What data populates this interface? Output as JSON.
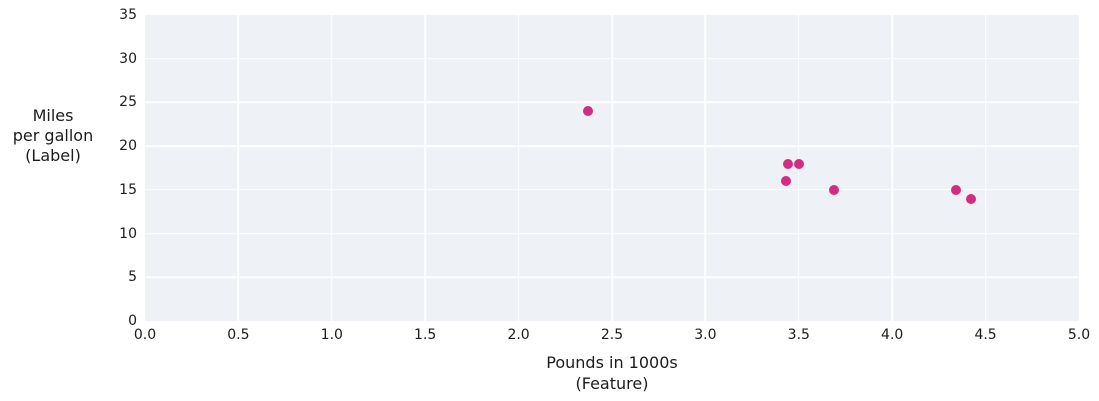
{
  "figure": {
    "y_axis_title": "Miles\nper gallon\n(Label)",
    "x_axis_title": "Pounds in 1000s\n(Feature)"
  },
  "chart_data": {
    "type": "scatter",
    "title": "",
    "xlabel": "Pounds in 1000s (Feature)",
    "ylabel": "Miles per gallon (Label)",
    "x": [
      3.5,
      3.69,
      3.44,
      3.43,
      4.34,
      4.42,
      2.37
    ],
    "y": [
      18,
      15,
      18,
      16,
      15,
      14,
      24
    ],
    "xlim": [
      0.0,
      5.0
    ],
    "ylim": [
      0,
      35
    ],
    "xticks": [
      0.0,
      0.5,
      1.0,
      1.5,
      2.0,
      2.5,
      3.0,
      3.5,
      4.0,
      4.5,
      5.0
    ],
    "xtick_labels": [
      "0.0",
      "0.5",
      "1.0",
      "1.5",
      "2.0",
      "2.5",
      "3.0",
      "3.5",
      "4.0",
      "4.5",
      "5.0"
    ],
    "yticks": [
      0,
      5,
      10,
      15,
      20,
      25,
      30,
      35
    ],
    "ytick_labels": [
      "0",
      "5",
      "10",
      "15",
      "20",
      "25",
      "30",
      "35"
    ],
    "grid": true,
    "legend": "none",
    "marker_color": "#d22d80",
    "plot_background": "#eef1f6",
    "grid_color": "#ffffff"
  }
}
